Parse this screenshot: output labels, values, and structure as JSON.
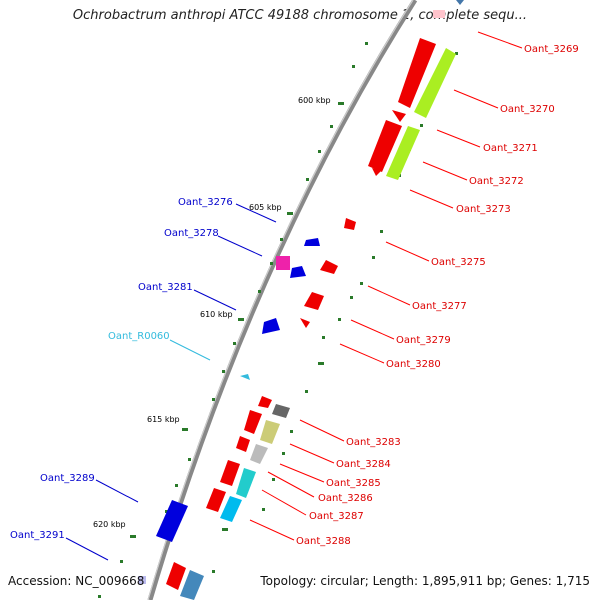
{
  "title": "Ochrobactrum anthropi ATCC 49188 chromosome 2, complete sequ...",
  "footer": {
    "accession": "Accession: NC_009668",
    "topology": "Topology: circular; Length: 1,895,911 bp; Genes: 1,715"
  },
  "kbp_labels": [
    "600 kbp",
    "605 kbp",
    "610 kbp",
    "615 kbp",
    "620 kbp"
  ],
  "genes_forward": [
    {
      "name": "Oant_3269",
      "color": "#ff0000"
    },
    {
      "name": "Oant_3270",
      "color": "#ff0000"
    },
    {
      "name": "Oant_3271",
      "color": "#ff0000"
    },
    {
      "name": "Oant_3272",
      "color": "#ff0000"
    },
    {
      "name": "Oant_3273",
      "color": "#ff0000"
    },
    {
      "name": "Oant_3275",
      "color": "#ff0000"
    },
    {
      "name": "Oant_3277",
      "color": "#ff0000"
    },
    {
      "name": "Oant_3279",
      "color": "#ff0000"
    },
    {
      "name": "Oant_3280",
      "color": "#ff0000"
    },
    {
      "name": "Oant_3283",
      "color": "#ff0000"
    },
    {
      "name": "Oant_3284",
      "color": "#ff0000"
    },
    {
      "name": "Oant_3285",
      "color": "#ff0000"
    },
    {
      "name": "Oant_3286",
      "color": "#ff0000"
    },
    {
      "name": "Oant_3287",
      "color": "#ff0000"
    },
    {
      "name": "Oant_3288",
      "color": "#ff0000"
    }
  ],
  "genes_reverse": [
    {
      "name": "Oant_3276",
      "color": "#0000cc"
    },
    {
      "name": "Oant_3278",
      "color": "#0000cc"
    },
    {
      "name": "Oant_3281",
      "color": "#0000cc"
    },
    {
      "name": "Oant_R0060",
      "color": "#33bbdd"
    },
    {
      "name": "Oant_3289",
      "color": "#0000cc"
    },
    {
      "name": "Oant_3291",
      "color": "#0000cc"
    }
  ]
}
